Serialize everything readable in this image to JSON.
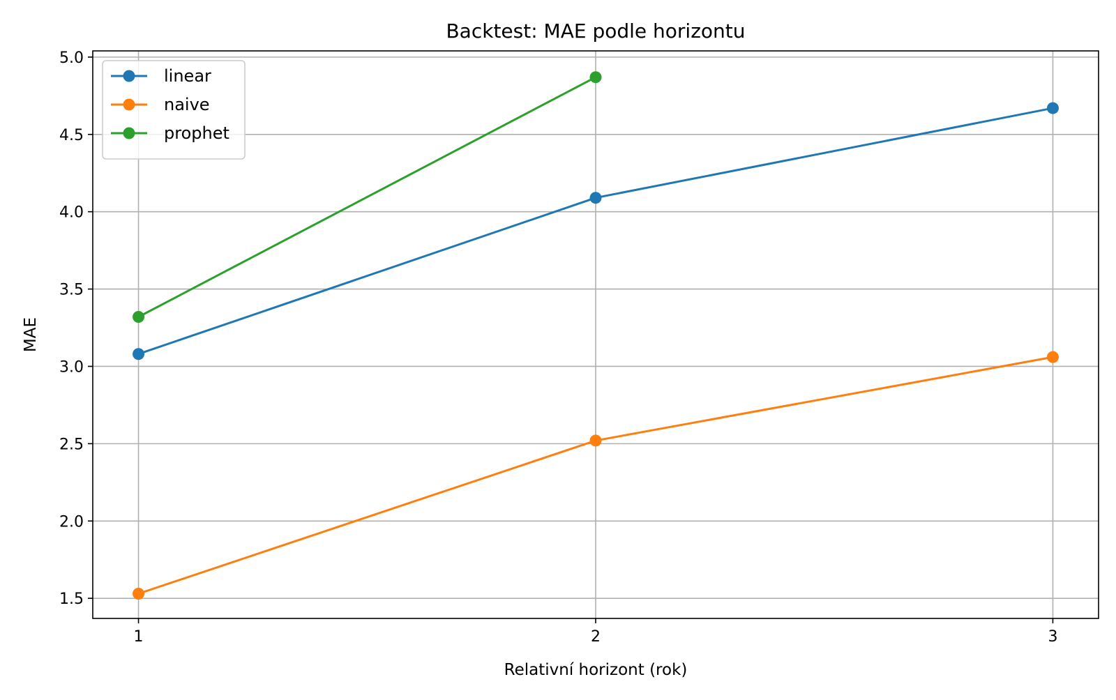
{
  "chart_data": {
    "type": "line",
    "title": "Backtest: MAE podle horizontu",
    "xlabel": "Relativní horizont (rok)",
    "ylabel": "MAE",
    "x": [
      1,
      2,
      3
    ],
    "x_tick_labels": [
      "1",
      "2",
      "3"
    ],
    "xlim": [
      0.9,
      3.1
    ],
    "ylim": [
      1.37,
      5.04
    ],
    "y_ticks": [
      1.5,
      2.0,
      2.5,
      3.0,
      3.5,
      4.0,
      4.5,
      5.0
    ],
    "y_tick_labels": [
      "1.5",
      "2.0",
      "2.5",
      "3.0",
      "3.5",
      "4.0",
      "4.5",
      "5.0"
    ],
    "grid": true,
    "legend_position": "top-left",
    "series": [
      {
        "name": "linear",
        "color": "#1f77b4",
        "x": [
          1,
          2,
          3
        ],
        "values": [
          3.08,
          4.09,
          4.67
        ]
      },
      {
        "name": "naive",
        "color": "#ff7f0e",
        "x": [
          1,
          2,
          3
        ],
        "values": [
          1.53,
          2.52,
          3.06
        ]
      },
      {
        "name": "prophet",
        "color": "#2ca02c",
        "x": [
          1,
          2
        ],
        "values": [
          3.32,
          4.87
        ]
      }
    ]
  }
}
